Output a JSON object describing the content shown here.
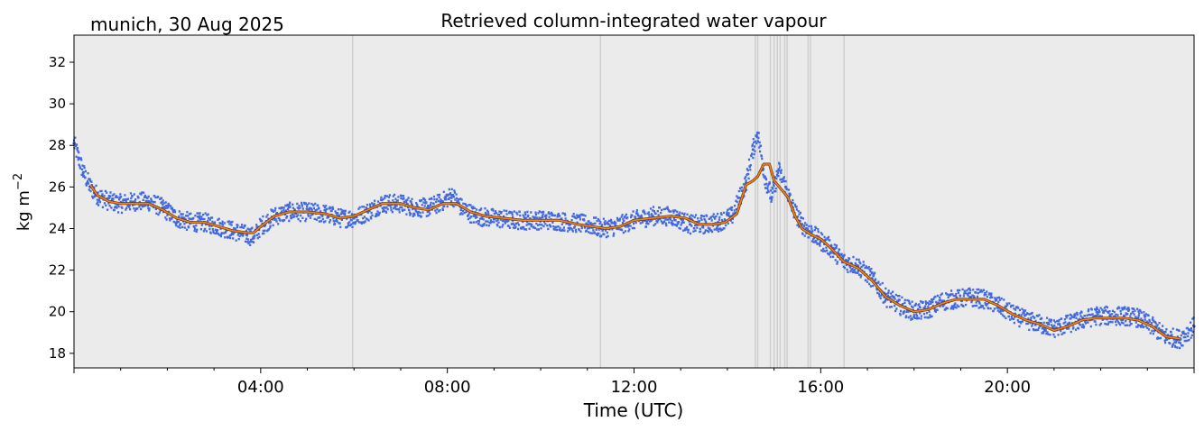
{
  "chart_data": {
    "type": "line",
    "location_date": "munich, 30 Aug 2025",
    "title": "Retrieved column-integrated water vapour",
    "xlabel": "Time (UTC)",
    "ylabel": "kg m",
    "ylabel_superscript": "−2",
    "xlim": [
      0,
      24
    ],
    "ylim": [
      17.3,
      33.3
    ],
    "x_ticks": [
      {
        "value": 4,
        "label": "04:00"
      },
      {
        "value": 8,
        "label": "08:00"
      },
      {
        "value": 12,
        "label": "12:00"
      },
      {
        "value": 16,
        "label": "16:00"
      },
      {
        "value": 20,
        "label": "20:00"
      }
    ],
    "y_ticks": [
      18,
      20,
      22,
      24,
      26,
      28,
      30,
      32
    ],
    "grid": false,
    "background_color": "#ebebeb",
    "series": [
      {
        "style": "scatter",
        "color": "#4169e1",
        "x": [
          0.0,
          0.1,
          0.2,
          0.35,
          0.5,
          0.75,
          1.0,
          1.3,
          1.6,
          1.9,
          2.2,
          2.5,
          2.8,
          3.1,
          3.4,
          3.7,
          3.85,
          4.0,
          4.3,
          4.6,
          5.0,
          5.4,
          5.7,
          6.0,
          6.3,
          6.6,
          7.0,
          7.3,
          7.6,
          7.9,
          8.1,
          8.3,
          8.6,
          9.0,
          9.4,
          9.8,
          10.2,
          10.6,
          11.0,
          11.3,
          11.6,
          12.0,
          12.4,
          12.8,
          13.2,
          13.5,
          13.8,
          14.1,
          14.4,
          14.55,
          14.65,
          14.8,
          14.95,
          15.1,
          15.25,
          15.4,
          15.6,
          15.8,
          16.0,
          16.2,
          16.5,
          16.8,
          17.1,
          17.4,
          17.7,
          18.0,
          18.3,
          18.6,
          18.9,
          19.2,
          19.5,
          19.8,
          20.1,
          20.4,
          20.7,
          21.0,
          21.3,
          21.6,
          21.9,
          22.2,
          22.5,
          22.8,
          23.1,
          23.4,
          23.7,
          24.0
        ],
        "y": [
          28.1,
          27.4,
          26.7,
          26.0,
          25.6,
          25.3,
          25.2,
          25.3,
          25.3,
          25.0,
          24.5,
          24.3,
          24.3,
          24.1,
          23.9,
          23.7,
          23.6,
          24.1,
          24.6,
          24.8,
          24.8,
          24.7,
          24.5,
          24.5,
          24.8,
          25.2,
          25.2,
          25.0,
          25.0,
          25.3,
          25.6,
          25.0,
          24.6,
          24.5,
          24.4,
          24.4,
          24.4,
          24.3,
          24.2,
          24.0,
          24.1,
          24.4,
          24.6,
          24.6,
          24.2,
          24.2,
          24.3,
          24.6,
          26.2,
          27.8,
          28.6,
          26.5,
          25.5,
          26.8,
          26.0,
          25.0,
          24.2,
          23.8,
          23.4,
          23.1,
          22.4,
          22.2,
          21.6,
          20.7,
          20.3,
          20.0,
          20.1,
          20.5,
          20.6,
          20.7,
          20.6,
          20.3,
          19.9,
          19.6,
          19.4,
          19.2,
          19.4,
          19.6,
          19.8,
          19.8,
          19.8,
          19.7,
          19.3,
          18.8,
          18.7,
          19.3
        ]
      },
      {
        "style": "line",
        "color": "#ff7f0e",
        "x": [
          0.35,
          0.5,
          0.75,
          1.0,
          1.3,
          1.6,
          1.9,
          2.2,
          2.5,
          2.8,
          3.1,
          3.4,
          3.7,
          3.85,
          4.0,
          4.3,
          4.6,
          5.0,
          5.4,
          5.7,
          6.0,
          6.3,
          6.6,
          7.0,
          7.3,
          7.6,
          7.9,
          8.2,
          8.5,
          8.8,
          9.2,
          9.6,
          10.0,
          10.4,
          10.8,
          11.1,
          11.4,
          11.7,
          12.0,
          12.4,
          12.8,
          13.1,
          13.4,
          13.7,
          13.95,
          14.2,
          14.4,
          14.55,
          14.65,
          14.78,
          14.9,
          15.0,
          15.15,
          15.3,
          15.45,
          15.6,
          15.8,
          16.0,
          16.2,
          16.5,
          16.8,
          17.1,
          17.4,
          17.7,
          18.0,
          18.3,
          18.6,
          18.9,
          19.2,
          19.5,
          19.8,
          20.1,
          20.4,
          20.7,
          21.0,
          21.3,
          21.6,
          21.9,
          22.2,
          22.5,
          22.8,
          23.1,
          23.4,
          23.7
        ],
        "y": [
          26.1,
          25.6,
          25.3,
          25.2,
          25.2,
          25.2,
          24.9,
          24.5,
          24.3,
          24.3,
          24.1,
          23.9,
          23.8,
          23.8,
          24.1,
          24.6,
          24.8,
          24.8,
          24.7,
          24.5,
          24.6,
          24.9,
          25.2,
          25.2,
          25.0,
          24.9,
          25.2,
          25.2,
          24.8,
          24.6,
          24.5,
          24.4,
          24.4,
          24.4,
          24.2,
          24.1,
          24.0,
          24.1,
          24.4,
          24.5,
          24.6,
          24.5,
          24.2,
          24.2,
          24.3,
          24.7,
          26.1,
          26.3,
          26.5,
          27.1,
          27.1,
          26.3,
          25.9,
          25.5,
          24.6,
          24.0,
          23.7,
          23.5,
          23.1,
          22.4,
          22.1,
          21.5,
          20.7,
          20.3,
          20.0,
          20.1,
          20.4,
          20.6,
          20.6,
          20.6,
          20.3,
          19.9,
          19.6,
          19.4,
          19.1,
          19.3,
          19.6,
          19.7,
          19.7,
          19.7,
          19.6,
          19.3,
          18.8,
          18.7
        ]
      }
    ],
    "flag_lines_x": [
      5.97,
      11.28,
      14.6,
      14.65,
      14.92,
      15.0,
      15.07,
      15.13,
      15.23,
      15.28,
      15.73,
      15.78,
      16.5
    ]
  }
}
